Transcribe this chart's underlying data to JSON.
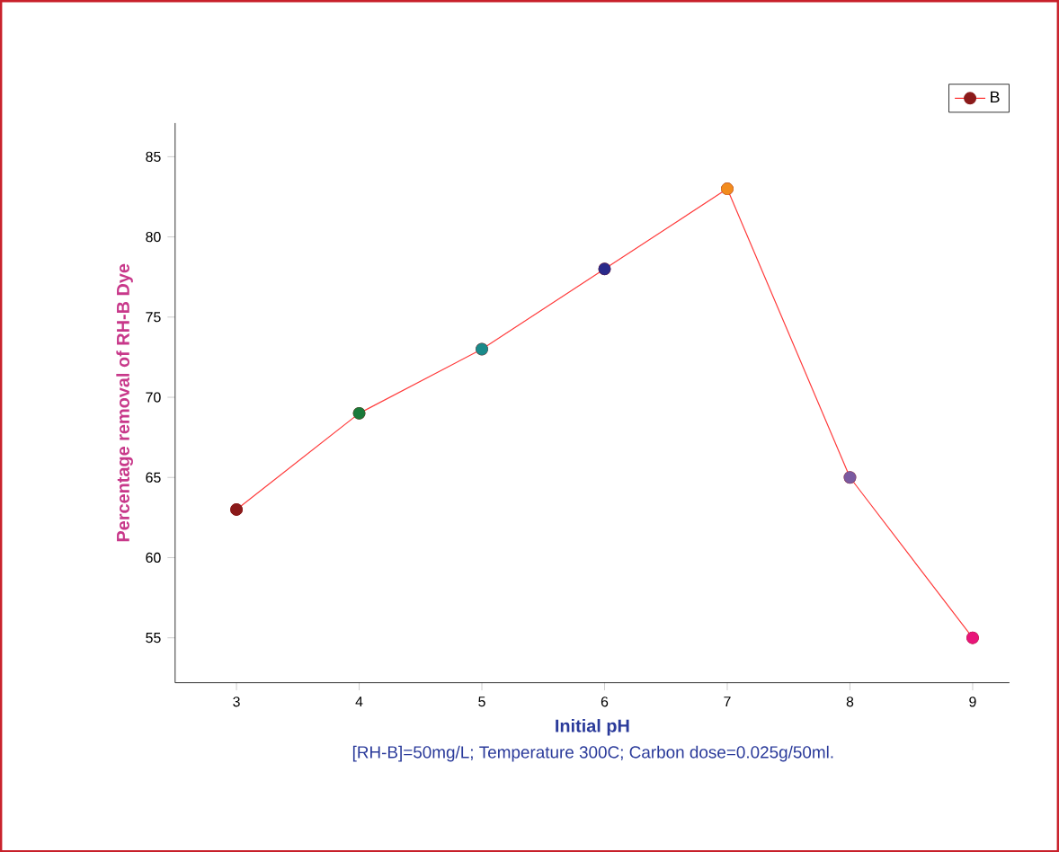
{
  "chart_data": {
    "type": "line",
    "xlabel": "Initial pH",
    "ylabel": "Percentage removal of RH-B Dye",
    "annotations": [
      "[RH-B]=50mg/L; Temperature 300C; Carbon dose=0.025g/50ml."
    ],
    "x": [
      3,
      4,
      5,
      6,
      7,
      8,
      9
    ],
    "series": [
      {
        "name": "B",
        "color": "#ff3b3b",
        "colors": [
          "#8b1a1a",
          "#1a7a3a",
          "#1a8a8a",
          "#2a2a8a",
          "#f28c1e",
          "#7a5aa0",
          "#e8157a"
        ],
        "values": [
          63,
          69,
          73,
          78,
          83,
          65,
          55
        ]
      }
    ],
    "xlim": [
      2.5,
      9.3
    ],
    "ylim": [
      52.2,
      87.1
    ],
    "xticks": [
      3,
      4,
      5,
      6,
      7,
      8,
      9
    ],
    "yticks": [
      55,
      60,
      65,
      70,
      75,
      80,
      85
    ],
    "marker": "circle",
    "legend": "top right"
  }
}
